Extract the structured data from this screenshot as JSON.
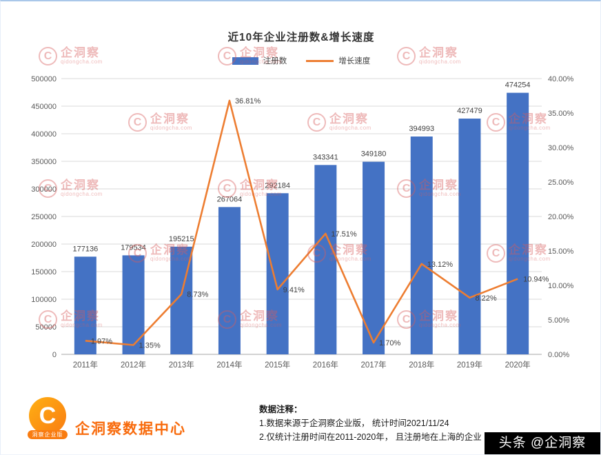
{
  "title": "近10年企业注册数&增长速度",
  "chart_data": {
    "type": "bar",
    "combo": "bar+line",
    "title": "近10年企业注册数&增长速度",
    "categories": [
      "2011年",
      "2012年",
      "2013年",
      "2014年",
      "2015年",
      "2016年",
      "2017年",
      "2018年",
      "2019年",
      "2020年"
    ],
    "series": [
      {
        "name": "注册数",
        "type": "bar",
        "color": "#4472c4",
        "values": [
          177136,
          179534,
          195215,
          267064,
          292184,
          343341,
          349180,
          394993,
          427479,
          474254
        ]
      },
      {
        "name": "增长速度",
        "type": "line",
        "color": "#ed7d31",
        "suffix": "%",
        "values": [
          1.97,
          1.35,
          8.73,
          36.81,
          9.41,
          17.51,
          1.7,
          13.12,
          8.22,
          10.94
        ]
      }
    ],
    "left_axis": {
      "min": 0,
      "max": 500000,
      "step": 50000
    },
    "right_axis": {
      "min": 0,
      "max": 40,
      "step": 5,
      "suffix": "%"
    },
    "grid": true,
    "legend_position": "top"
  },
  "watermark": {
    "brand": "企洞察",
    "domain": "qidongcha.com",
    "logo_glyph": "C"
  },
  "footer": {
    "logo_glyph": "C",
    "logo_ribbon": "洞察企业版",
    "org_name": "企洞察数据中心",
    "notes_title": "数据注释：",
    "note1": "1.数据来源于企洞察企业版， 统计时间2021/11/24",
    "note2": "2.仅统计注册时间在2011-2020年， 且注册地在上海的企业",
    "ribbon": "头条 @企洞察"
  }
}
